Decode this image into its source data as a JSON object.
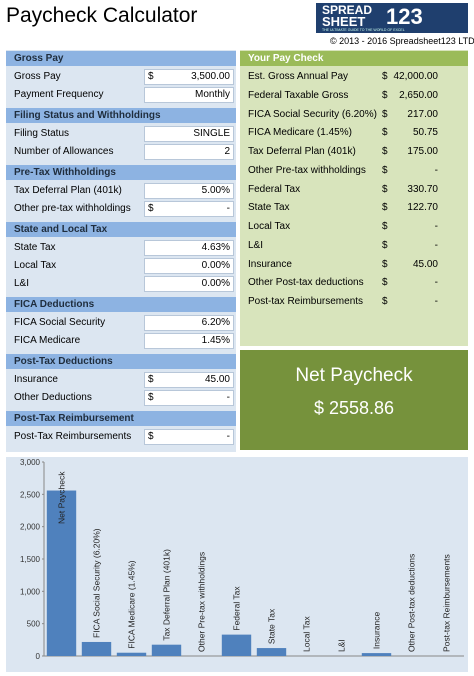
{
  "header": {
    "title": "Paycheck Calculator",
    "logo_top": "SPREAD",
    "logo_bottom": "SHEET",
    "logo_number": "123",
    "tagline": "THE ULTIMATE GUIDE TO THE WORLD OF EXCEL",
    "copyright": "© 2013 - 2016 Spreadsheet123 LTD"
  },
  "inputs": [
    {
      "title": "Gross Pay",
      "rows": [
        {
          "label": "Gross Pay",
          "prefix": "$",
          "value": "3,500.00"
        },
        {
          "label": "Payment Frequency",
          "value": "Monthly"
        }
      ]
    },
    {
      "title": "Filing Status and Withholdings",
      "rows": [
        {
          "label": "Filing Status",
          "value": "SINGLE"
        },
        {
          "label": "Number of Allowances",
          "value": "2"
        }
      ]
    },
    {
      "title": "Pre-Tax Withholdings",
      "rows": [
        {
          "label": "Tax Deferral Plan (401k)",
          "value": "5.00%"
        },
        {
          "label": "Other pre-tax withholdings",
          "prefix": "$",
          "value": "-"
        }
      ]
    },
    {
      "title": "State and Local Tax",
      "rows": [
        {
          "label": "State Tax",
          "value": "4.63%"
        },
        {
          "label": "Local Tax",
          "value": "0.00%"
        },
        {
          "label": "L&I",
          "value": "0.00%"
        }
      ]
    },
    {
      "title": "FICA Deductions",
      "rows": [
        {
          "label": "FICA Social Security",
          "value": "6.20%"
        },
        {
          "label": "FICA Medicare",
          "value": "1.45%"
        }
      ]
    },
    {
      "title": "Post-Tax Deductions",
      "rows": [
        {
          "label": "Insurance",
          "prefix": "$",
          "value": "45.00"
        },
        {
          "label": "Other Deductions",
          "prefix": "$",
          "value": "-"
        }
      ]
    },
    {
      "title": "Post-Tax Reimbursement",
      "rows": [
        {
          "label": "Post-Tax Reimbursements",
          "prefix": "$",
          "value": "-"
        }
      ]
    }
  ],
  "paycheck": {
    "title": "Your Pay Check",
    "rows": [
      {
        "label": "Est. Gross Annual Pay",
        "prefix": "$",
        "value": "42,000.00"
      },
      {
        "label": "Federal Taxable Gross",
        "prefix": "$",
        "value": "2,650.00"
      },
      {
        "label": "FICA Social Security (6.20%)",
        "prefix": "$",
        "value": "217.00"
      },
      {
        "label": "FICA Medicare (1.45%)",
        "prefix": "$",
        "value": "50.75"
      },
      {
        "label": "Tax Deferral Plan (401k)",
        "prefix": "$",
        "value": "175.00"
      },
      {
        "label": "Other Pre-tax withholdings",
        "prefix": "$",
        "value": "-"
      },
      {
        "label": "Federal Tax",
        "prefix": "$",
        "value": "330.70"
      },
      {
        "label": "State Tax",
        "prefix": "$",
        "value": "122.70"
      },
      {
        "label": "Local Tax",
        "prefix": "$",
        "value": "-"
      },
      {
        "label": "L&I",
        "prefix": "$",
        "value": "-"
      },
      {
        "label": "Insurance",
        "prefix": "$",
        "value": "45.00"
      },
      {
        "label": "Other Post-tax deductions",
        "prefix": "$",
        "value": "-"
      },
      {
        "label": "Post-tax Reimbursements",
        "prefix": "$",
        "value": "-"
      }
    ]
  },
  "net": {
    "title": "Net Paycheck",
    "value": "$ 2558.86"
  },
  "chart_data": {
    "type": "bar",
    "color": "#4f81bd",
    "categories": [
      "Net Paycheck",
      "FICA Social Security (6.20%)",
      "FICA Medicare (1.45%)",
      "Tax Deferral Plan (401k)",
      "Other Pre-tax withholdings",
      "Federal Tax",
      "State Tax",
      "Local Tax",
      "L&I",
      "Insurance",
      "Other Post-tax deductions",
      "Post-tax Reimbursements"
    ],
    "values": [
      2558.86,
      217,
      50.75,
      175,
      0,
      330.7,
      122.7,
      0,
      0,
      45,
      0,
      0
    ],
    "ylim": [
      0,
      3000
    ],
    "yticks": [
      0,
      500,
      {
        "value": 1000,
        "label": "1,000"
      },
      {
        "value": 1500,
        "label": "1,500"
      },
      {
        "value": 2000,
        "label": "2,000"
      },
      {
        "value": 2500,
        "label": "2,500"
      },
      {
        "value": 3000,
        "label": "3,000"
      }
    ],
    "grid": false
  }
}
